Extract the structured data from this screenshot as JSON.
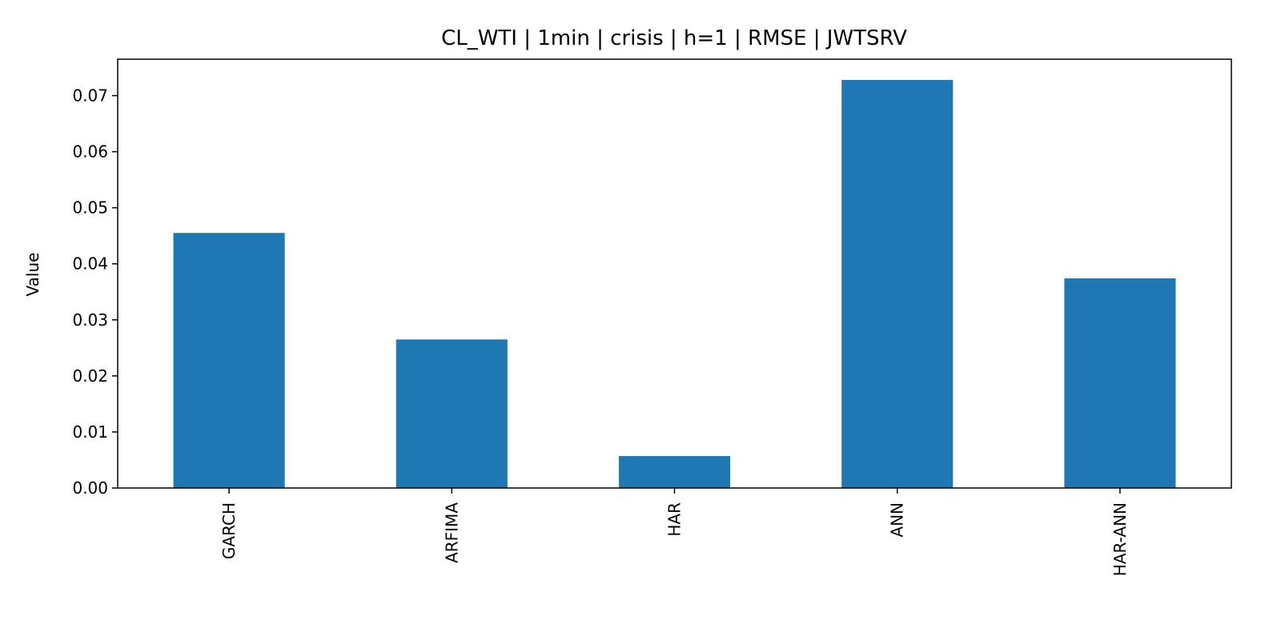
{
  "chart_data": {
    "type": "bar",
    "title": "CL_WTI | 1min | crisis | h=1 | RMSE | JWTSRV",
    "xlabel": "",
    "ylabel": "Value",
    "categories": [
      "GARCH",
      "ARFIMA",
      "HAR",
      "ANN",
      "HAR-ANN"
    ],
    "values": [
      0.0455,
      0.0265,
      0.0057,
      0.0728,
      0.0374
    ],
    "ylim": [
      0,
      0.0765
    ],
    "yticks": [
      0.0,
      0.01,
      0.02,
      0.03,
      0.04,
      0.05,
      0.06,
      0.07
    ],
    "ytick_labels": [
      "0.00",
      "0.01",
      "0.02",
      "0.03",
      "0.04",
      "0.05",
      "0.06",
      "0.07"
    ],
    "bar_color": "#1f77b4",
    "grid": false,
    "legend": "none"
  }
}
